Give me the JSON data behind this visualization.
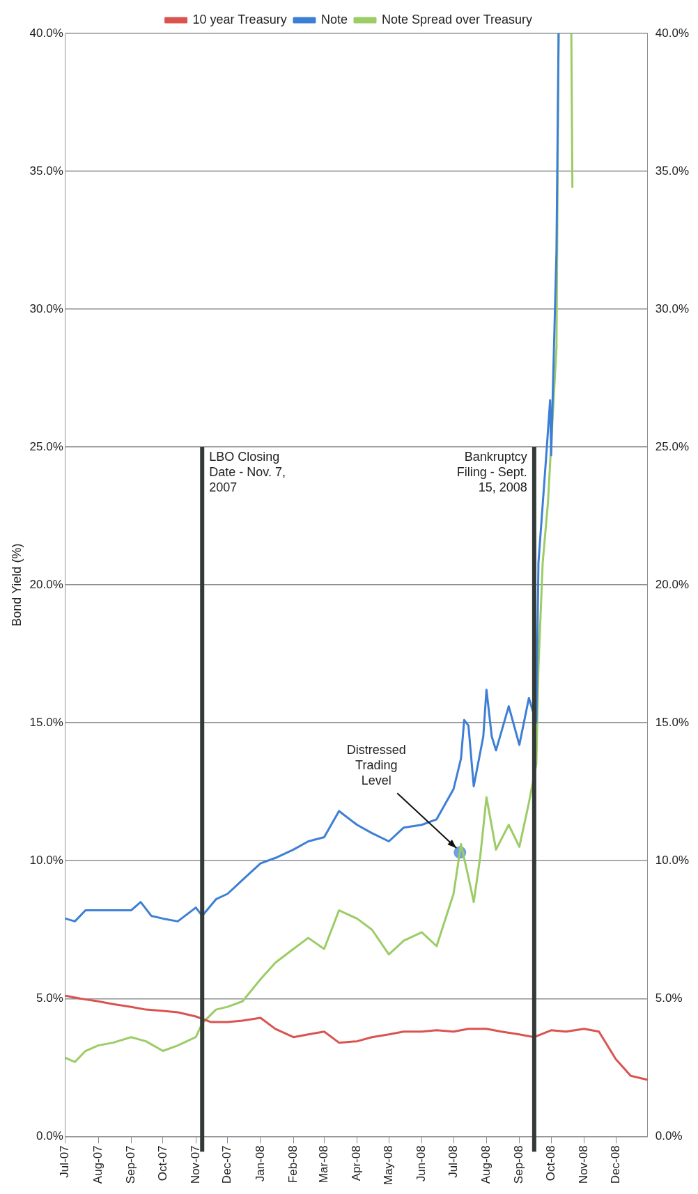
{
  "chart_data": {
    "type": "line",
    "ylabel": "Bond Yield (%)",
    "xlim": [
      "2007-07-01",
      "2008-12-31"
    ],
    "xticks": [
      {
        "value": "2007-07-01",
        "label": "Jul-07"
      },
      {
        "value": "2007-08-01",
        "label": "Aug-07"
      },
      {
        "value": "2007-09-01",
        "label": "Sep-07"
      },
      {
        "value": "2007-10-01",
        "label": "Oct-07"
      },
      {
        "value": "2007-11-01",
        "label": "Nov-07"
      },
      {
        "value": "2007-12-01",
        "label": "Dec-07"
      },
      {
        "value": "2008-01-01",
        "label": "Jan-08"
      },
      {
        "value": "2008-02-01",
        "label": "Feb-08"
      },
      {
        "value": "2008-03-01",
        "label": "Mar-08"
      },
      {
        "value": "2008-04-01",
        "label": "Apr-08"
      },
      {
        "value": "2008-05-01",
        "label": "May-08"
      },
      {
        "value": "2008-06-01",
        "label": "Jun-08"
      },
      {
        "value": "2008-07-01",
        "label": "Jul-08"
      },
      {
        "value": "2008-08-01",
        "label": "Aug-08"
      },
      {
        "value": "2008-09-01",
        "label": "Sep-08"
      },
      {
        "value": "2008-10-01",
        "label": "Oct-08"
      },
      {
        "value": "2008-11-01",
        "label": "Nov-08"
      },
      {
        "value": "2008-12-01",
        "label": "Dec-08"
      }
    ],
    "ylim": [
      0,
      40
    ],
    "yticks": [
      {
        "value": 0,
        "label": "0.0%"
      },
      {
        "value": 5,
        "label": "5.0%"
      },
      {
        "value": 10,
        "label": "10.0%"
      },
      {
        "value": 15,
        "label": "15.0%"
      },
      {
        "value": 20,
        "label": "20.0%"
      },
      {
        "value": 25,
        "label": "25.0%"
      },
      {
        "value": 30,
        "label": "30.0%"
      },
      {
        "value": 35,
        "label": "35.0%"
      },
      {
        "value": 40,
        "label": "40.0%"
      }
    ],
    "y2lim": [
      0,
      40
    ],
    "y2ticks": [
      {
        "value": 0,
        "label": "0.0%"
      },
      {
        "value": 5,
        "label": "5.0%"
      },
      {
        "value": 10,
        "label": "10.0%"
      },
      {
        "value": 15,
        "label": "15.0%"
      },
      {
        "value": 20,
        "label": "20.0%"
      },
      {
        "value": 25,
        "label": "25.0%"
      },
      {
        "value": 30,
        "label": "30.0%"
      },
      {
        "value": 35,
        "label": "35.0%"
      },
      {
        "value": 40,
        "label": "40.0%"
      }
    ],
    "grid": "y",
    "legend": "top",
    "marker": "none",
    "line_style": "solid",
    "series": [
      {
        "name": "10 year Treasury",
        "color": "#d9534f",
        "x": [
          "2007-07-01",
          "2007-07-15",
          "2007-08-01",
          "2007-08-15",
          "2007-09-01",
          "2007-09-15",
          "2007-10-01",
          "2007-10-15",
          "2007-11-01",
          "2007-11-15",
          "2007-12-01",
          "2007-12-15",
          "2008-01-01",
          "2008-01-15",
          "2008-02-01",
          "2008-02-15",
          "2008-03-01",
          "2008-03-15",
          "2008-04-01",
          "2008-04-15",
          "2008-05-01",
          "2008-05-15",
          "2008-06-01",
          "2008-06-15",
          "2008-07-01",
          "2008-07-15",
          "2008-08-01",
          "2008-08-15",
          "2008-09-01",
          "2008-09-15",
          "2008-10-01",
          "2008-10-15",
          "2008-11-01",
          "2008-11-15",
          "2008-12-01",
          "2008-12-15",
          "2008-12-31"
        ],
        "values": [
          5.1,
          5.0,
          4.9,
          4.8,
          4.7,
          4.6,
          4.55,
          4.5,
          4.35,
          4.15,
          4.15,
          4.2,
          4.3,
          3.9,
          3.6,
          3.7,
          3.8,
          3.4,
          3.45,
          3.6,
          3.7,
          3.8,
          3.8,
          3.85,
          3.8,
          3.9,
          3.9,
          3.8,
          3.7,
          3.6,
          3.85,
          3.8,
          3.9,
          3.8,
          2.8,
          2.2,
          2.05
        ]
      },
      {
        "name": "Note",
        "color": "#3d7fd6",
        "x": [
          "2007-07-01",
          "2007-07-10",
          "2007-07-20",
          "2007-08-01",
          "2007-08-15",
          "2007-09-01",
          "2007-09-10",
          "2007-09-20",
          "2007-10-01",
          "2007-10-15",
          "2007-11-01",
          "2007-11-07",
          "2007-11-20",
          "2007-12-01",
          "2007-12-15",
          "2008-01-01",
          "2008-01-15",
          "2008-02-01",
          "2008-02-15",
          "2008-03-01",
          "2008-03-15",
          "2008-04-01",
          "2008-04-15",
          "2008-05-01",
          "2008-05-15",
          "2008-06-01",
          "2008-06-15",
          "2008-07-01",
          "2008-07-08",
          "2008-07-11",
          "2008-07-15",
          "2008-07-20",
          "2008-07-29",
          "2008-08-01",
          "2008-08-06",
          "2008-08-10",
          "2008-08-22",
          "2008-09-01",
          "2008-09-10",
          "2008-09-17",
          "2008-09-19",
          "2008-09-26",
          "2008-09-30",
          "2008-10-01",
          "2008-10-06",
          "2008-10-08"
        ],
        "values": [
          7.9,
          7.8,
          8.2,
          8.2,
          8.2,
          8.2,
          8.5,
          8.0,
          7.9,
          7.8,
          8.3,
          8.0,
          8.6,
          8.8,
          9.3,
          9.9,
          10.1,
          10.4,
          10.7,
          10.85,
          11.8,
          11.3,
          11.0,
          10.7,
          11.2,
          11.3,
          11.5,
          12.6,
          13.7,
          15.1,
          14.9,
          12.7,
          14.5,
          16.2,
          14.5,
          14.0,
          15.6,
          14.2,
          15.9,
          15.0,
          20.8,
          24.5,
          26.7,
          24.7,
          32.1,
          40
        ]
      },
      {
        "name": "Note Spread over Treasury",
        "color": "#9ccc65",
        "x": [
          "2007-07-01",
          "2007-07-10",
          "2007-07-20",
          "2007-08-01",
          "2007-08-15",
          "2007-09-01",
          "2007-09-15",
          "2007-10-01",
          "2007-10-15",
          "2007-11-01",
          "2007-11-07",
          "2007-11-20",
          "2007-12-01",
          "2007-12-15",
          "2008-01-01",
          "2008-01-15",
          "2008-02-01",
          "2008-02-15",
          "2008-03-01",
          "2008-03-15",
          "2008-04-01",
          "2008-04-15",
          "2008-05-01",
          "2008-05-15",
          "2008-06-01",
          "2008-06-15",
          "2008-07-01",
          "2008-07-08",
          "2008-07-15",
          "2008-07-20",
          "2008-07-26",
          "2008-08-01",
          "2008-08-10",
          "2008-08-22",
          "2008-09-01",
          "2008-09-10",
          "2008-09-17",
          "2008-09-19",
          "2008-09-23",
          "2008-09-28",
          "2008-10-06",
          "2008-10-08",
          "2008-10-14",
          "2008-10-20",
          "2008-10-21"
        ],
        "values": [
          2.85,
          2.7,
          3.1,
          3.3,
          3.4,
          3.6,
          3.45,
          3.1,
          3.3,
          3.6,
          4.1,
          4.6,
          4.7,
          4.9,
          5.7,
          6.3,
          6.8,
          7.2,
          6.8,
          8.2,
          7.9,
          7.5,
          6.6,
          7.1,
          7.4,
          6.9,
          8.8,
          10.6,
          9.4,
          8.5,
          10.1,
          12.3,
          10.4,
          11.3,
          10.5,
          12.1,
          13.5,
          17.0,
          20.8,
          23.0,
          28.6,
          40,
          null,
          40,
          34.4
        ]
      },
      {
        "type": "scatter",
        "color": "#6fa0e0",
        "marker": "circle",
        "x": [
          "2008-07-07"
        ],
        "values": [
          10.3
        ]
      }
    ],
    "ref_lines": [
      {
        "axis": "x",
        "value": "2007-11-07",
        "label": "LBO Closing Date - Nov. 7, 2007",
        "color": "#333a38"
      },
      {
        "axis": "x",
        "value": "2008-09-15",
        "label": "Bankruptcy Filing - Sept. 15, 2008",
        "color": "#333a38"
      }
    ],
    "annotations": [
      {
        "text": "Distressed Trading Level",
        "x": "2008-07-07",
        "y": 10.3
      }
    ]
  }
}
